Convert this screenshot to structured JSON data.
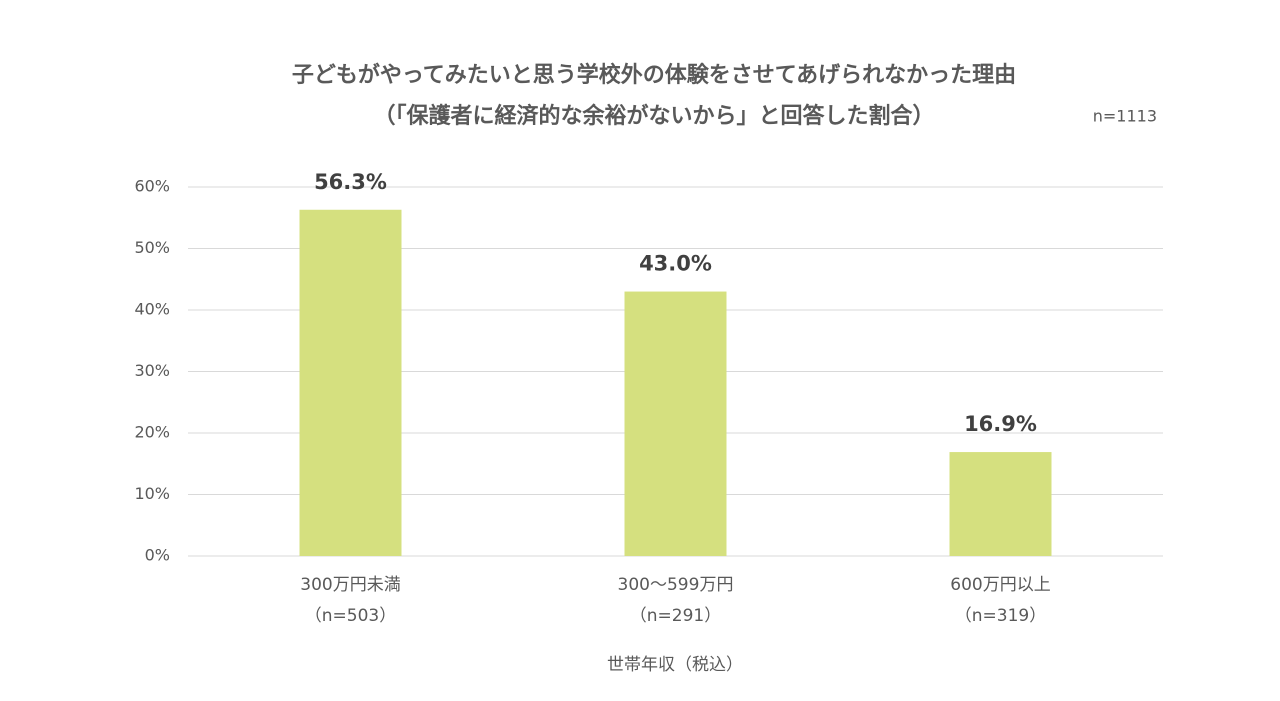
{
  "chart_data": {
    "type": "bar",
    "title": "子どもがやってみたいと思う学校外の体験をさせてあげられなかった理由",
    "subtitle": "（「保護者に経済的な余裕がないから」と回答した割合）",
    "note": "n=1113",
    "x_label": "世帯年収（税込）",
    "categories": [
      [
        "300万円未満",
        "（n=503）"
      ],
      [
        "300〜599万円",
        "（n=291）"
      ],
      [
        "600万円以上",
        "（n=319）"
      ]
    ],
    "values": [
      56.3,
      43.0,
      16.9
    ],
    "value_labels": [
      "56.3%",
      "43.0%",
      "16.9%"
    ],
    "color": "#d5e07f",
    "ylim": [
      0,
      60
    ],
    "yticks": [
      {
        "value": 0,
        "label": "0%"
      },
      {
        "value": 10,
        "label": "10%"
      },
      {
        "value": 20,
        "label": "20%"
      },
      {
        "value": 30,
        "label": "30%"
      },
      {
        "value": 40,
        "label": "40%"
      },
      {
        "value": 50,
        "label": "50%"
      },
      {
        "value": 60,
        "label": "60%"
      }
    ],
    "grid": true
  }
}
